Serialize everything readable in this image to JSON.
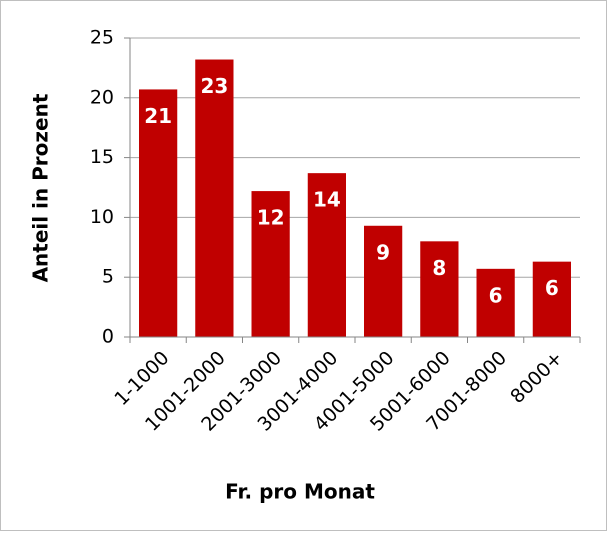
{
  "chart_data": {
    "type": "bar",
    "categories": [
      "1-1000",
      "1001-2000",
      "2001-3000",
      "3001-4000",
      "4001-5000",
      "5001-6000",
      "7001-8000",
      "8000+"
    ],
    "values": [
      20.7,
      23.2,
      12.2,
      13.7,
      9.3,
      8.0,
      5.7,
      6.3
    ],
    "value_labels": [
      "21",
      "23",
      "12",
      "14",
      "9",
      "8",
      "6",
      "6"
    ],
    "color": "#c00000",
    "xlabel": "Fr. pro Monat",
    "ylabel": "Anteil in Prozent",
    "ylim": [
      0,
      25
    ],
    "yticks": [
      0,
      5,
      10,
      15,
      20,
      25
    ],
    "grid": true
  }
}
